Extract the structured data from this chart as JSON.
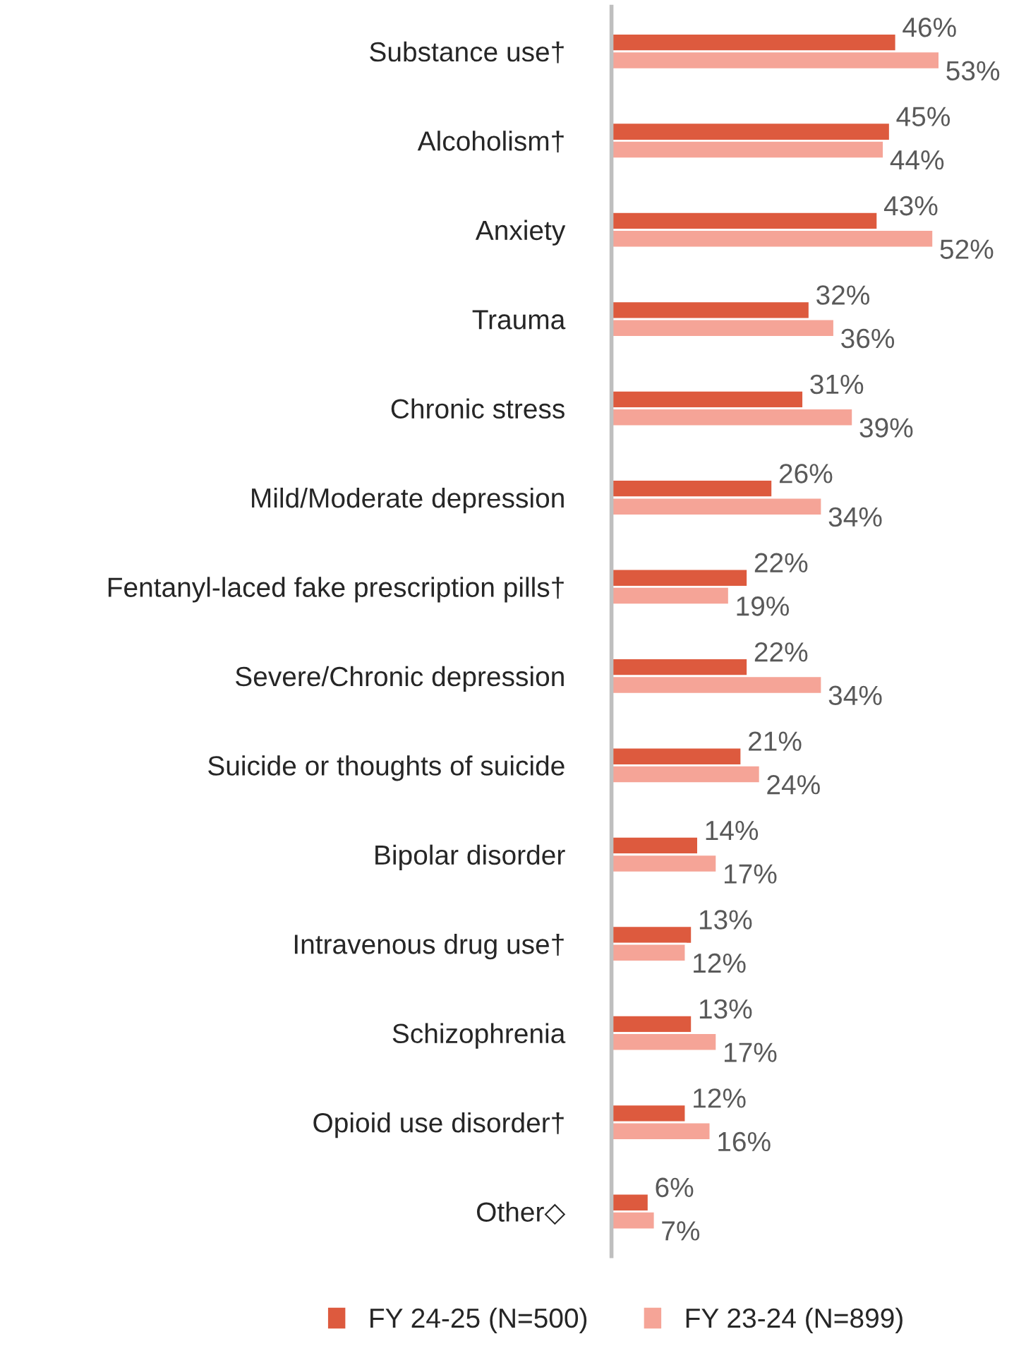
{
  "chart_data": {
    "type": "bar",
    "orientation": "horizontal",
    "categories": [
      "Substance use†",
      "Alcoholism†",
      "Anxiety",
      "Trauma",
      "Chronic stress",
      "Mild/Moderate depression",
      "Fentanyl-laced fake prescription pills†",
      "Severe/Chronic depression",
      "Suicide or thoughts of suicide",
      "Bipolar disorder",
      "Intravenous drug use†",
      "Schizophrenia",
      "Opioid use disorder†",
      "Other◇"
    ],
    "series": [
      {
        "name": "FY 24-25 (N=500)",
        "color": "#dd5a3e",
        "values": [
          46,
          45,
          43,
          32,
          31,
          26,
          22,
          22,
          21,
          14,
          13,
          13,
          12,
          6
        ],
        "value_labels": [
          "46%",
          "45%",
          "43%",
          "32%",
          "31%",
          "26%",
          "22%",
          "22%",
          "21%",
          "14%",
          "13%",
          "13%",
          "12%",
          "6%"
        ]
      },
      {
        "name": "FY 23-24 (N=899)",
        "color": "#f5a497",
        "values": [
          53,
          44,
          52,
          36,
          39,
          34,
          19,
          34,
          24,
          17,
          12,
          17,
          16,
          7
        ],
        "value_labels": [
          "53%",
          "44%",
          "52%",
          "36%",
          "39%",
          "34%",
          "19%",
          "34%",
          "24%",
          "17%",
          "12%",
          "17%",
          "16%",
          "7%"
        ]
      }
    ],
    "legend": "bottom",
    "grid": false,
    "tick_labels": "y"
  }
}
